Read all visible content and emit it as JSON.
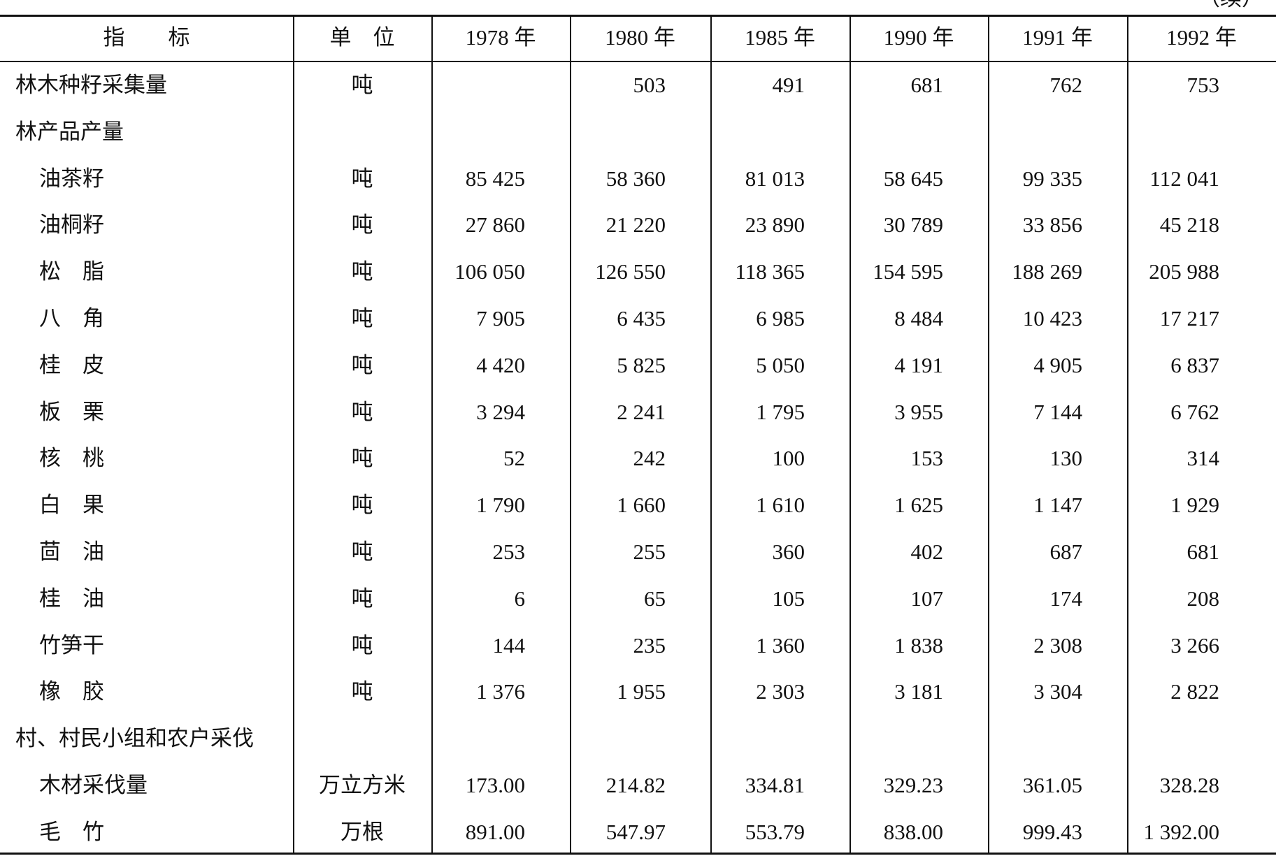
{
  "note": "（续）",
  "table": {
    "header": [
      "指　　标",
      "单　位",
      "1978 年",
      "1980 年",
      "1985 年",
      "1990 年",
      "1991 年",
      "1992 年"
    ],
    "rows": [
      [
        "林木种籽采集量",
        "吨",
        null,
        "503",
        "491",
        "681",
        "762",
        "753"
      ],
      [
        "林产品产量",
        null,
        null,
        null,
        null,
        null,
        null,
        null
      ],
      [
        "油茶籽",
        "吨",
        "85 425",
        "58 360",
        "81 013",
        "58 645",
        "99 335",
        "112 041"
      ],
      [
        "油桐籽",
        "吨",
        "27 860",
        "21 220",
        "23 890",
        "30 789",
        "33 856",
        "45 218"
      ],
      [
        "松　脂",
        "吨",
        "106 050",
        "126 550",
        "118 365",
        "154 595",
        "188 269",
        "205 988"
      ],
      [
        "八　角",
        "吨",
        "7 905",
        "6 435",
        "6 985",
        "8 484",
        "10 423",
        "17 217"
      ],
      [
        "桂　皮",
        "吨",
        "4 420",
        "5 825",
        "5 050",
        "4 191",
        "4 905",
        "6 837"
      ],
      [
        "板　栗",
        "吨",
        "3 294",
        "2 241",
        "1 795",
        "3 955",
        "7 144",
        "6 762"
      ],
      [
        "核　桃",
        "吨",
        "52",
        "242",
        "100",
        "153",
        "130",
        "314"
      ],
      [
        "白　果",
        "吨",
        "1 790",
        "1 660",
        "1 610",
        "1 625",
        "1 147",
        "1 929"
      ],
      [
        "茴　油",
        "吨",
        "253",
        "255",
        "360",
        "402",
        "687",
        "681"
      ],
      [
        "桂　油",
        "吨",
        "6",
        "65",
        "105",
        "107",
        "174",
        "208"
      ],
      [
        "竹笋干",
        "吨",
        "144",
        "235",
        "1 360",
        "1 838",
        "2 308",
        "3 266"
      ],
      [
        "橡　胶",
        "吨",
        "1 376",
        "1 955",
        "2 303",
        "3 181",
        "3 304",
        "2 822"
      ],
      [
        "村、村民小组和农户采伐",
        null,
        null,
        null,
        null,
        null,
        null,
        null
      ],
      [
        "木材采伐量",
        "万立方米",
        "173.00",
        "214.82",
        "334.81",
        "329.23",
        "361.05",
        "328.28"
      ],
      [
        "毛　竹",
        "万根",
        "891.00",
        "547.97",
        "553.79",
        "838.00",
        "999.43",
        "1 392.00"
      ]
    ]
  }
}
